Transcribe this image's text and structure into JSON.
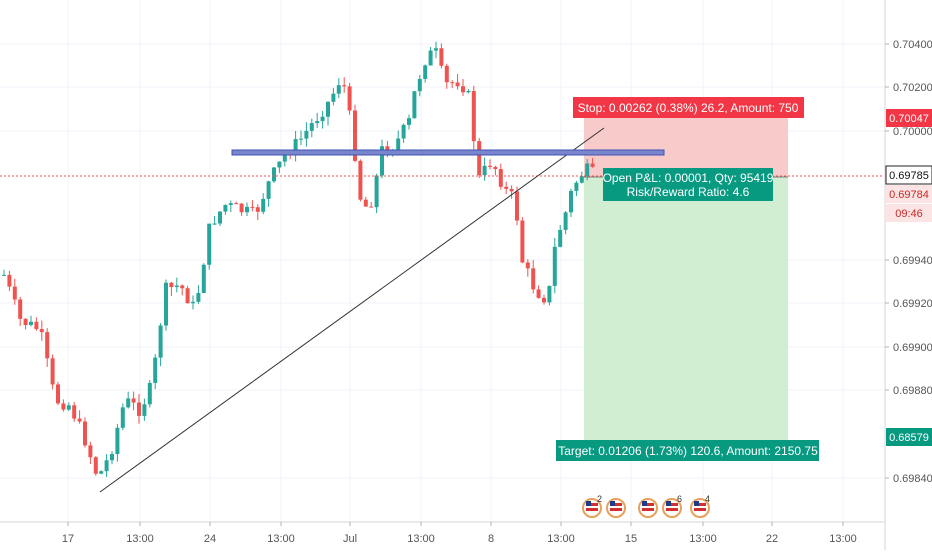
{
  "chart_data": {
    "type": "candlestick",
    "price_ticks": [
      "0.70400",
      "0.70200",
      "0.70000",
      "0.69940",
      "0.69920",
      "0.69900",
      "0.69880",
      "0.69840"
    ],
    "time_ticks": [
      "17",
      "13:00",
      "24",
      "13:00",
      "Jul",
      "13:00",
      "8",
      "13:00",
      "15",
      "13:00",
      "22",
      "13:00"
    ],
    "price_tick_values": [
      0.704,
      0.702,
      0.7,
      0.6994,
      0.6992,
      0.699,
      0.6988,
      0.6984
    ],
    "badges": {
      "stop_level": "0.70047",
      "last_price": "0.69785",
      "entry": "0.69784",
      "countdown": "09:46",
      "target_level": "0.68579"
    },
    "labels": {
      "stop": "Stop: 0.00262 (0.38%) 26.2, Amount: 750",
      "open_pl": "Open P&L: 0.00001, Qty: 95419",
      "risk_reward": "Risk/Reward Ratio: 4.6",
      "target": "Target: 0.01206 (1.73%) 120.6, Amount: 2150.75"
    },
    "event_flags": [
      "2",
      "6",
      "4"
    ],
    "colors": {
      "bull": "#26a69a",
      "bear": "#ef5350",
      "stop_zone": "#f7c2c2",
      "target_zone": "#c9ebcb",
      "stop_label": "#f23645",
      "target_label": "#089981",
      "resistance": "#3f51b5",
      "trendline": "#333333"
    }
  }
}
